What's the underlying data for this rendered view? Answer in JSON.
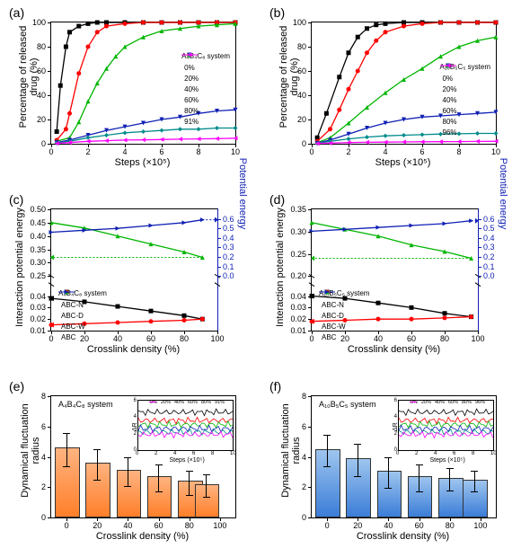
{
  "panels": {
    "a": {
      "label": "(a)",
      "system": "A₄B₄C₈ system"
    },
    "b": {
      "label": "(b)",
      "system": "A₁₀B₅C₅ system"
    },
    "c": {
      "label": "(c)",
      "system": "A₄B₄C₈ system"
    },
    "d": {
      "label": "(d)",
      "system": "A₁₀B₅C₅ system"
    },
    "e": {
      "label": "(e)",
      "system": "A₄B₄C₈ system"
    },
    "f": {
      "label": "(f)",
      "system": "A₁₀B₅C₅ system"
    }
  },
  "axis_labels": {
    "ab_x": "Steps (×10⁵)",
    "ab_y": "Percentage of released drug (%)",
    "cd_x": "Crosslink density (%)",
    "cd_y_left": "Interaction potential energy",
    "cd_y_right": "Potential energy",
    "ef_x": "Crosslink density (%)",
    "ef_y": "Dynamical fluctuation radius",
    "inset_x": "Steps (×10⁵)",
    "inset_y": "ΔR"
  },
  "colors": {
    "black": "#000000",
    "red": "#ff0000",
    "green": "#00b500",
    "blue_dark": "#1020b4",
    "teal": "#008b8b",
    "magenta": "#ff00ff",
    "orange_fill": "#ff7f2a",
    "orange_top": "#ffb380",
    "blue_fill": "#3b7dd8",
    "blue_top": "#9ec5ee",
    "right_axis": "#1020b4"
  },
  "chart_a": {
    "xlim": [
      0,
      10
    ],
    "xticks": [
      0,
      2,
      4,
      6,
      8,
      10
    ],
    "ylim": [
      0,
      100
    ],
    "yticks": [
      0,
      20,
      40,
      60,
      80,
      100
    ],
    "legend_labels": [
      "0%",
      "20%",
      "40%",
      "60%",
      "80%",
      "91%"
    ],
    "legend_colors": [
      "#000000",
      "#ff0000",
      "#00b500",
      "#1020b4",
      "#008b8b",
      "#ff00ff"
    ],
    "legend_shapes": [
      "square",
      "circle",
      "triangle",
      "down-triangle",
      "diamond",
      "left-triangle"
    ],
    "series": [
      {
        "c": "#000000",
        "pts": [
          [
            0.3,
            10
          ],
          [
            0.5,
            48
          ],
          [
            0.8,
            80
          ],
          [
            1,
            92
          ],
          [
            1.5,
            97
          ],
          [
            2,
            99
          ],
          [
            2.5,
            100
          ],
          [
            3,
            100
          ],
          [
            4,
            100
          ],
          [
            5,
            100
          ],
          [
            6,
            100
          ],
          [
            7,
            100
          ],
          [
            8,
            100
          ],
          [
            9,
            100
          ],
          [
            10,
            100
          ]
        ]
      },
      {
        "c": "#ff0000",
        "pts": [
          [
            0.3,
            3
          ],
          [
            0.8,
            12
          ],
          [
            1,
            25
          ],
          [
            1.5,
            58
          ],
          [
            2,
            80
          ],
          [
            2.5,
            92
          ],
          [
            3,
            97
          ],
          [
            4,
            99
          ],
          [
            5,
            100
          ],
          [
            6,
            100
          ],
          [
            7,
            100
          ],
          [
            8,
            100
          ],
          [
            9,
            100
          ],
          [
            10,
            100
          ]
        ]
      },
      {
        "c": "#00b500",
        "pts": [
          [
            0.3,
            2
          ],
          [
            1,
            5
          ],
          [
            1.5,
            18
          ],
          [
            2,
            35
          ],
          [
            2.5,
            50
          ],
          [
            3,
            62
          ],
          [
            3.5,
            72
          ],
          [
            4,
            80
          ],
          [
            5,
            88
          ],
          [
            6,
            93
          ],
          [
            7,
            95
          ],
          [
            8,
            97
          ],
          [
            9,
            98
          ],
          [
            10,
            99
          ]
        ]
      },
      {
        "c": "#1020b4",
        "pts": [
          [
            0.3,
            1
          ],
          [
            1,
            3
          ],
          [
            2,
            7
          ],
          [
            3,
            11
          ],
          [
            4,
            14
          ],
          [
            5,
            17
          ],
          [
            6,
            20
          ],
          [
            7,
            22
          ],
          [
            8,
            25
          ],
          [
            9,
            27
          ],
          [
            10,
            28
          ]
        ]
      },
      {
        "c": "#008b8b",
        "pts": [
          [
            0.3,
            0.5
          ],
          [
            1,
            2
          ],
          [
            2,
            5
          ],
          [
            3,
            7
          ],
          [
            4,
            9
          ],
          [
            5,
            10
          ],
          [
            6,
            11
          ],
          [
            7,
            12
          ],
          [
            8,
            12
          ],
          [
            9,
            13
          ],
          [
            10,
            13
          ]
        ]
      },
      {
        "c": "#ff00ff",
        "pts": [
          [
            0.3,
            0.3
          ],
          [
            1,
            1
          ],
          [
            2,
            2
          ],
          [
            3,
            2.5
          ],
          [
            4,
            3
          ],
          [
            5,
            3.2
          ],
          [
            6,
            3.5
          ],
          [
            7,
            3.8
          ],
          [
            8,
            4
          ],
          [
            9,
            4.2
          ],
          [
            10,
            4.5
          ]
        ]
      }
    ]
  },
  "chart_b": {
    "xlim": [
      0,
      10
    ],
    "xticks": [
      0,
      2,
      4,
      6,
      8,
      10
    ],
    "ylim": [
      0,
      100
    ],
    "yticks": [
      0,
      20,
      40,
      60,
      80,
      100
    ],
    "legend_labels": [
      "0%",
      "20%",
      "40%",
      "60%",
      "80%",
      "96%"
    ],
    "legend_colors": [
      "#000000",
      "#ff0000",
      "#00b500",
      "#1020b4",
      "#008b8b",
      "#ff00ff"
    ],
    "legend_shapes": [
      "square",
      "circle",
      "triangle",
      "down-triangle",
      "diamond",
      "left-triangle"
    ],
    "series": [
      {
        "c": "#000000",
        "pts": [
          [
            0.3,
            5
          ],
          [
            0.8,
            25
          ],
          [
            1.5,
            55
          ],
          [
            2,
            75
          ],
          [
            2.5,
            88
          ],
          [
            3,
            95
          ],
          [
            3.5,
            98
          ],
          [
            4,
            99
          ],
          [
            5,
            100
          ],
          [
            6,
            100
          ],
          [
            7,
            100
          ],
          [
            8,
            100
          ],
          [
            9,
            100
          ],
          [
            10,
            100
          ]
        ]
      },
      {
        "c": "#ff0000",
        "pts": [
          [
            0.3,
            2
          ],
          [
            1,
            12
          ],
          [
            1.5,
            28
          ],
          [
            2,
            45
          ],
          [
            2.5,
            60
          ],
          [
            3,
            75
          ],
          [
            3.5,
            85
          ],
          [
            4,
            92
          ],
          [
            5,
            97
          ],
          [
            6,
            99
          ],
          [
            7,
            100
          ],
          [
            8,
            100
          ],
          [
            9,
            100
          ],
          [
            10,
            100
          ]
        ]
      },
      {
        "c": "#00b500",
        "pts": [
          [
            0.3,
            1
          ],
          [
            1,
            5
          ],
          [
            2,
            17
          ],
          [
            3,
            30
          ],
          [
            4,
            42
          ],
          [
            5,
            53
          ],
          [
            6,
            62
          ],
          [
            7,
            72
          ],
          [
            8,
            80
          ],
          [
            9,
            85
          ],
          [
            10,
            88
          ]
        ]
      },
      {
        "c": "#1020b4",
        "pts": [
          [
            0.3,
            0.5
          ],
          [
            1,
            3
          ],
          [
            2,
            8
          ],
          [
            3,
            13
          ],
          [
            4,
            17
          ],
          [
            5,
            20
          ],
          [
            6,
            22
          ],
          [
            7,
            23
          ],
          [
            8,
            24
          ],
          [
            9,
            25
          ],
          [
            10,
            26
          ]
        ]
      },
      {
        "c": "#008b8b",
        "pts": [
          [
            0.3,
            0.3
          ],
          [
            1,
            2
          ],
          [
            2,
            4
          ],
          [
            3,
            5.5
          ],
          [
            4,
            6.5
          ],
          [
            5,
            7
          ],
          [
            6,
            7.5
          ],
          [
            7,
            8
          ],
          [
            8,
            8.2
          ],
          [
            9,
            8.5
          ],
          [
            10,
            8.5
          ]
        ]
      },
      {
        "c": "#ff00ff",
        "pts": [
          [
            0.3,
            0.2
          ],
          [
            1,
            0.5
          ],
          [
            2,
            1
          ],
          [
            3,
            1.2
          ],
          [
            4,
            1.3
          ],
          [
            5,
            1.5
          ],
          [
            6,
            1.6
          ],
          [
            7,
            1.7
          ],
          [
            8,
            1.8
          ],
          [
            9,
            1.9
          ],
          [
            10,
            2
          ]
        ]
      }
    ]
  },
  "chart_c": {
    "xlim": [
      0,
      100
    ],
    "xticks": [
      0,
      20,
      40,
      60,
      80,
      100
    ],
    "ylim_top": [
      0.25,
      0.5
    ],
    "yticks_top": [
      0.25,
      0.3,
      0.35,
      0.4,
      0.45,
      0.5
    ],
    "ylim_bot": [
      0.01,
      0.05
    ],
    "yticks_bot": [
      0.01,
      0.02,
      0.03,
      0.04
    ],
    "ylim_right": [
      0.0,
      0.7
    ],
    "yticks_right": [
      0.0,
      0.1,
      0.2,
      0.3,
      0.4,
      0.5,
      0.6
    ],
    "legend_labels": [
      "ABC-N",
      "ABC-D",
      "ABC-W",
      "ABC"
    ],
    "legend_colors": [
      "#000000",
      "#ff0000",
      "#00b500",
      "#1020b4"
    ],
    "legend_shapes": [
      "square",
      "circle",
      "triangle",
      "right-triangle"
    ],
    "series_top": [
      {
        "c": "#00b500",
        "pts": [
          [
            0,
            0.45
          ],
          [
            20,
            0.43
          ],
          [
            40,
            0.4
          ],
          [
            60,
            0.37
          ],
          [
            80,
            0.34
          ],
          [
            91,
            0.32
          ]
        ]
      },
      {
        "c": "#1020b4",
        "pts": [
          [
            0,
            0.46
          ],
          [
            20,
            0.48
          ],
          [
            40,
            0.5
          ],
          [
            60,
            0.53
          ],
          [
            80,
            0.56
          ],
          [
            91,
            0.59
          ]
        ],
        "right": true
      }
    ],
    "series_bot": [
      {
        "c": "#000000",
        "pts": [
          [
            0,
            0.038
          ],
          [
            20,
            0.035
          ],
          [
            40,
            0.031
          ],
          [
            60,
            0.027
          ],
          [
            80,
            0.023
          ],
          [
            91,
            0.02
          ]
        ]
      },
      {
        "c": "#ff0000",
        "pts": [
          [
            0,
            0.015
          ],
          [
            20,
            0.016
          ],
          [
            40,
            0.017
          ],
          [
            60,
            0.018
          ],
          [
            80,
            0.019
          ],
          [
            91,
            0.02
          ]
        ]
      }
    ]
  },
  "chart_d": {
    "xlim": [
      0,
      100
    ],
    "xticks": [
      0,
      20,
      40,
      60,
      80,
      100
    ],
    "ylim_top": [
      0.2,
      0.35
    ],
    "yticks_top": [
      0.2,
      0.25,
      0.3,
      0.35
    ],
    "ylim_bot": [
      0.01,
      0.05
    ],
    "yticks_bot": [
      0.01,
      0.02,
      0.03,
      0.04
    ],
    "ylim_right": [
      0.0,
      0.7
    ],
    "yticks_right": [
      0.0,
      0.1,
      0.2,
      0.3,
      0.4,
      0.5,
      0.6
    ],
    "legend_labels": [
      "ABC-N",
      "ABC-D",
      "ABC-W",
      "ABC"
    ],
    "legend_colors": [
      "#000000",
      "#ff0000",
      "#00b500",
      "#1020b4"
    ],
    "legend_shapes": [
      "square",
      "circle",
      "triangle",
      "right-triangle"
    ],
    "series_top": [
      {
        "c": "#00b500",
        "pts": [
          [
            0,
            0.32
          ],
          [
            20,
            0.305
          ],
          [
            40,
            0.29
          ],
          [
            60,
            0.27
          ],
          [
            80,
            0.255
          ],
          [
            96,
            0.24
          ]
        ]
      },
      {
        "c": "#1020b4",
        "pts": [
          [
            0,
            0.47
          ],
          [
            20,
            0.49
          ],
          [
            40,
            0.51
          ],
          [
            60,
            0.53
          ],
          [
            80,
            0.55
          ],
          [
            96,
            0.58
          ]
        ],
        "right": true
      }
    ],
    "series_bot": [
      {
        "c": "#000000",
        "pts": [
          [
            0,
            0.04
          ],
          [
            20,
            0.038
          ],
          [
            40,
            0.034
          ],
          [
            60,
            0.03
          ],
          [
            80,
            0.025
          ],
          [
            96,
            0.022
          ]
        ]
      },
      {
        "c": "#ff0000",
        "pts": [
          [
            0,
            0.018
          ],
          [
            20,
            0.019
          ],
          [
            40,
            0.02
          ],
          [
            60,
            0.02
          ],
          [
            80,
            0.021
          ],
          [
            96,
            0.022
          ]
        ]
      }
    ]
  },
  "chart_e": {
    "xlim": [
      -10,
      110
    ],
    "xticks": [
      0,
      20,
      40,
      60,
      80,
      100
    ],
    "ylim": [
      0,
      8
    ],
    "yticks": [
      0,
      2,
      4,
      6,
      8
    ],
    "bar_x": [
      0,
      20,
      40,
      60,
      80,
      91
    ],
    "bar_y": [
      4.5,
      3.5,
      3.0,
      2.6,
      2.3,
      2.1
    ],
    "bar_err": [
      1.1,
      1.0,
      0.95,
      0.9,
      0.8,
      0.75
    ],
    "inset_legend": [
      "0%",
      "20%",
      "40%",
      "60%",
      "80%",
      "91%"
    ],
    "inset_colors": [
      "#000000",
      "#ff0000",
      "#00b500",
      "#1020b4",
      "#008b8b",
      "#ff00ff"
    ]
  },
  "chart_f": {
    "xlim": [
      -10,
      110
    ],
    "xticks": [
      0,
      20,
      40,
      60,
      80,
      100
    ],
    "ylim": [
      0,
      8
    ],
    "yticks": [
      0,
      2,
      4,
      6,
      8
    ],
    "bar_x": [
      0,
      20,
      40,
      60,
      80,
      96
    ],
    "bar_y": [
      4.4,
      3.8,
      2.95,
      2.6,
      2.5,
      2.4
    ],
    "bar_err": [
      1.05,
      1.05,
      1.0,
      0.9,
      0.75,
      0.7
    ],
    "inset_legend": [
      "0%",
      "20%",
      "40%",
      "60%",
      "80%",
      "96%"
    ],
    "inset_colors": [
      "#000000",
      "#ff0000",
      "#00b500",
      "#1020b4",
      "#008b8b",
      "#ff00ff"
    ]
  }
}
